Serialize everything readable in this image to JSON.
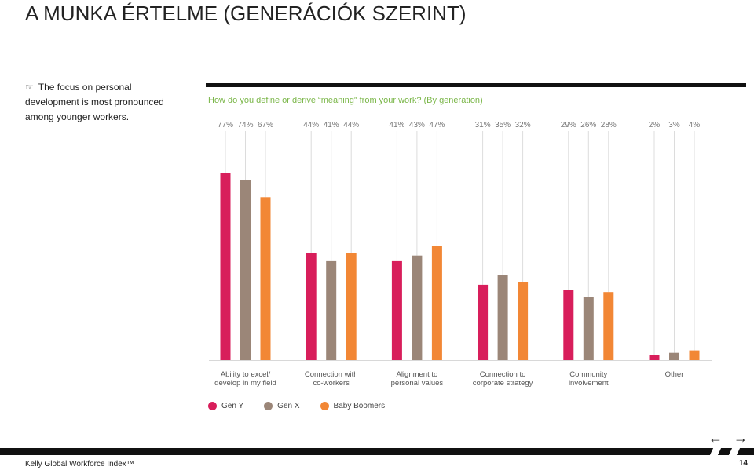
{
  "header": {
    "title": "A MUNKA ÉRTELME (GENERÁCIÓK SZERINT)"
  },
  "note": {
    "icon": "hand-pointer-icon",
    "text": "The focus on personal development is most pronounced among younger workers."
  },
  "chart_data": {
    "type": "bar",
    "title": "How do you define or derive “meaning” from your work? (By generation)",
    "categories": [
      [
        "Ability to excel/",
        "develop in my field"
      ],
      [
        "Connection with",
        "co-workers"
      ],
      [
        "Alignment to",
        "personal values"
      ],
      [
        "Connection to",
        "corporate strategy"
      ],
      [
        "Community",
        "involvement"
      ],
      [
        "Other"
      ]
    ],
    "series": [
      {
        "name": "Gen Y",
        "color": "#d81e5b",
        "values": [
          77,
          44,
          41,
          31,
          29,
          2
        ]
      },
      {
        "name": "Gen X",
        "color": "#9b8678",
        "values": [
          74,
          41,
          43,
          35,
          26,
          3
        ]
      },
      {
        "name": "Baby Boomers",
        "color": "#f28735",
        "values": [
          67,
          44,
          47,
          32,
          28,
          4
        ]
      }
    ],
    "value_suffix": "%",
    "ylim": [
      0,
      80
    ]
  },
  "nav": {
    "prev": "←",
    "next": "→"
  },
  "footer": {
    "left": "Kelly Global Workforce Index™",
    "page": "14"
  }
}
